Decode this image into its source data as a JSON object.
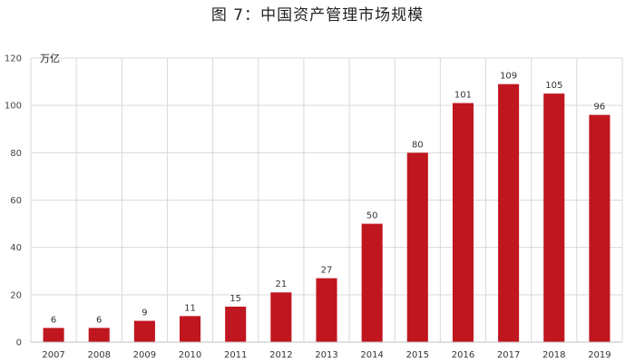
{
  "chart_data": {
    "type": "bar",
    "title": "图 7：中国资产管理市场规模",
    "unit": "万亿",
    "categories": [
      "2007",
      "2008",
      "2009",
      "2010",
      "2011",
      "2012",
      "2013",
      "2014",
      "2015",
      "2016",
      "2017",
      "2018",
      "2019"
    ],
    "values": [
      6,
      6,
      9,
      11,
      15,
      21,
      27,
      50,
      80,
      101,
      109,
      105,
      96
    ],
    "ylim": [
      0,
      120
    ],
    "yticks": [
      0,
      20,
      40,
      60,
      80,
      100,
      120
    ],
    "grid": true,
    "legend": "none",
    "colors": {
      "bar": "#c0161f",
      "grid": "#d9d9d9",
      "axis": "#bfbfbf"
    }
  }
}
